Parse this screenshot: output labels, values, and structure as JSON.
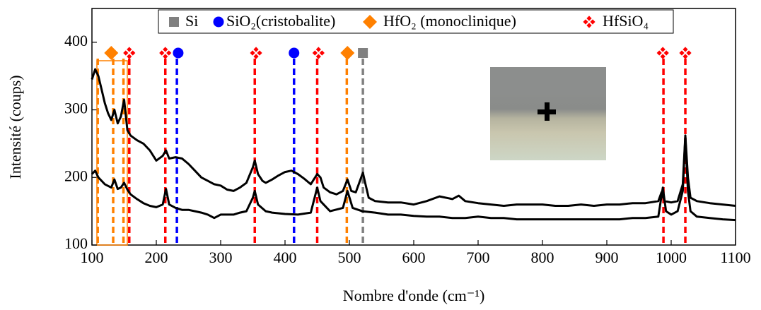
{
  "chart_data": {
    "type": "line",
    "xlabel": "Nombre d'onde (cm⁻¹)",
    "ylabel": "Intensité (coups)",
    "xlim": [
      100,
      1100
    ],
    "xticks": [
      100,
      200,
      300,
      400,
      500,
      600,
      700,
      800,
      900,
      1000,
      1100
    ],
    "ylim": [
      100,
      450
    ],
    "yticks": [
      100,
      200,
      300,
      400
    ],
    "series": [
      {
        "color": "#000000",
        "x": [
          100,
          105,
          110,
          115,
          120,
          125,
          130,
          135,
          140,
          145,
          150,
          155,
          160,
          170,
          180,
          190,
          200,
          210,
          215,
          220,
          230,
          240,
          250,
          260,
          270,
          280,
          290,
          300,
          310,
          320,
          330,
          340,
          350,
          353,
          358,
          365,
          370,
          380,
          390,
          400,
          410,
          420,
          430,
          440,
          450,
          455,
          460,
          470,
          480,
          490,
          497,
          503,
          510,
          521,
          525,
          530,
          540,
          560,
          580,
          600,
          620,
          640,
          660,
          670,
          680,
          700,
          720,
          740,
          760,
          780,
          800,
          820,
          840,
          860,
          880,
          900,
          920,
          940,
          960,
          980,
          985,
          990,
          1000,
          1010,
          1018,
          1022,
          1026,
          1030,
          1040,
          1060,
          1080,
          1100
        ],
        "values": [
          345,
          360,
          350,
          330,
          310,
          295,
          285,
          300,
          280,
          290,
          315,
          270,
          262,
          255,
          250,
          240,
          225,
          232,
          240,
          228,
          230,
          228,
          220,
          210,
          200,
          195,
          190,
          188,
          182,
          180,
          185,
          192,
          215,
          225,
          205,
          195,
          192,
          197,
          203,
          208,
          210,
          205,
          198,
          190,
          205,
          200,
          185,
          178,
          175,
          180,
          197,
          180,
          178,
          207,
          190,
          170,
          165,
          163,
          163,
          160,
          165,
          172,
          168,
          173,
          165,
          162,
          160,
          158,
          160,
          160,
          160,
          158,
          158,
          160,
          158,
          160,
          160,
          162,
          162,
          165,
          178,
          165,
          163,
          165,
          190,
          262,
          200,
          170,
          165,
          162,
          160,
          158
        ]
      },
      {
        "color": "#000000",
        "x": [
          100,
          105,
          110,
          120,
          130,
          135,
          140,
          145,
          150,
          155,
          160,
          170,
          180,
          190,
          200,
          210,
          215,
          220,
          230,
          240,
          250,
          260,
          270,
          280,
          290,
          300,
          310,
          320,
          330,
          340,
          350,
          353,
          358,
          370,
          380,
          400,
          420,
          440,
          450,
          455,
          470,
          490,
          497,
          505,
          520,
          540,
          560,
          580,
          600,
          620,
          640,
          660,
          680,
          700,
          720,
          740,
          760,
          780,
          800,
          820,
          840,
          860,
          880,
          900,
          920,
          940,
          960,
          980,
          987,
          992,
          1000,
          1010,
          1018,
          1022,
          1026,
          1030,
          1040,
          1060,
          1080,
          1100
        ],
        "values": [
          205,
          210,
          200,
          190,
          185,
          197,
          183,
          185,
          192,
          182,
          175,
          168,
          162,
          158,
          156,
          160,
          183,
          160,
          155,
          152,
          152,
          150,
          148,
          145,
          140,
          145,
          145,
          145,
          148,
          150,
          170,
          180,
          160,
          150,
          148,
          146,
          145,
          148,
          185,
          165,
          150,
          155,
          180,
          155,
          150,
          148,
          145,
          145,
          143,
          142,
          142,
          140,
          140,
          142,
          140,
          140,
          138,
          138,
          138,
          138,
          138,
          138,
          138,
          138,
          138,
          140,
          140,
          142,
          185,
          150,
          145,
          150,
          180,
          260,
          180,
          150,
          142,
          140,
          138,
          137
        ]
      }
    ],
    "reference_lines": [
      {
        "name": "Si",
        "color": "#808080",
        "marker": "square",
        "lines": [
          521
        ],
        "markers": [
          521
        ]
      },
      {
        "name": "SiO₂(cristobalite)",
        "color": "#0000ff",
        "marker": "circle",
        "lines": [
          232,
          414
        ],
        "markers": [
          234,
          414
        ]
      },
      {
        "name": "HfO₂ (monoclinique)",
        "color": "#ff8000",
        "marker": "diamond",
        "lines": [
          109,
          133,
          149,
          496
        ],
        "markers": [
          130,
          497
        ]
      },
      {
        "name": "HfSiO₄",
        "color": "#ff0000",
        "marker": "quad-diamond",
        "lines": [
          158,
          214,
          353,
          450,
          988,
          1022
        ],
        "markers": [
          158,
          214,
          355,
          452,
          987,
          1022
        ]
      }
    ]
  }
}
